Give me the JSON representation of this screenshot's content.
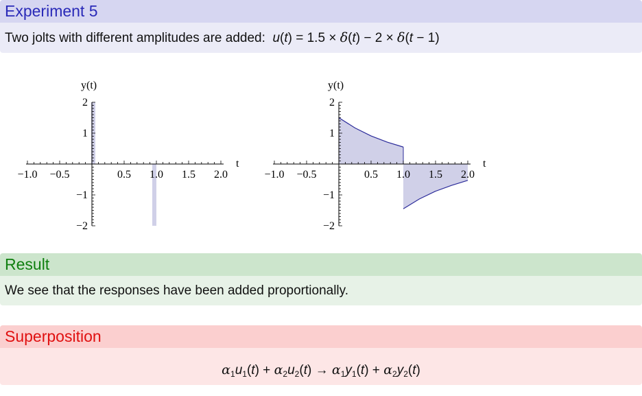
{
  "experiment": {
    "title": "Experiment 5",
    "description": "Two jolts with different amplitudes are added:",
    "equation": {
      "u": "u",
      "t": "t",
      "coef1": "1.5",
      "times": "×",
      "delta": "δ",
      "minus": "−",
      "coef2": "2",
      "one": "1"
    }
  },
  "plots": [
    {
      "ylabel": "y(t)",
      "xlabel": "t",
      "xticks": [
        "−1.0",
        "−0.5",
        "0.5",
        "1.0",
        "1.5",
        "2.0"
      ],
      "yticks": [
        "2",
        "1",
        "−1",
        "−2"
      ]
    },
    {
      "ylabel": "y(t)",
      "xlabel": "t",
      "xticks": [
        "−1.0",
        "−0.5",
        "0.5",
        "1.0",
        "1.5",
        "2.0"
      ],
      "yticks": [
        "2",
        "1",
        "−1",
        "−2"
      ]
    }
  ],
  "chart_data": [
    {
      "type": "bar",
      "xlabel": "t",
      "ylabel": "y(t)",
      "xlim": [
        -1.0,
        2.0
      ],
      "ylim": [
        -2,
        2
      ],
      "series": [
        {
          "x": [
            0,
            1.0
          ],
          "values": [
            2,
            -2
          ]
        }
      ],
      "colors": {
        "fill": "#d0d0e8"
      }
    },
    {
      "type": "area",
      "xlabel": "t",
      "ylabel": "y(t)",
      "xlim": [
        -1.0,
        2.0
      ],
      "ylim": [
        -2,
        2
      ],
      "series": [
        {
          "x": [
            0,
            0.25,
            0.5,
            0.75,
            1.0
          ],
          "values": [
            1.5,
            1.17,
            0.91,
            0.71,
            0.55
          ]
        },
        {
          "x": [
            1.0,
            1.25,
            1.5,
            1.75,
            2.0
          ],
          "values": [
            -1.45,
            -1.13,
            -0.88,
            -0.69,
            -0.53
          ]
        }
      ],
      "colors": {
        "line": "#2b2b9a",
        "fill": "#d0d0e8"
      }
    }
  ],
  "result": {
    "title": "Result",
    "text": "We see that the responses have been added proportionally."
  },
  "superposition": {
    "title": "Superposition",
    "alpha": "α",
    "u": "u",
    "y": "y",
    "t": "t",
    "plus": "+",
    "arrow": "→",
    "sub1": "1",
    "sub2": "2"
  }
}
